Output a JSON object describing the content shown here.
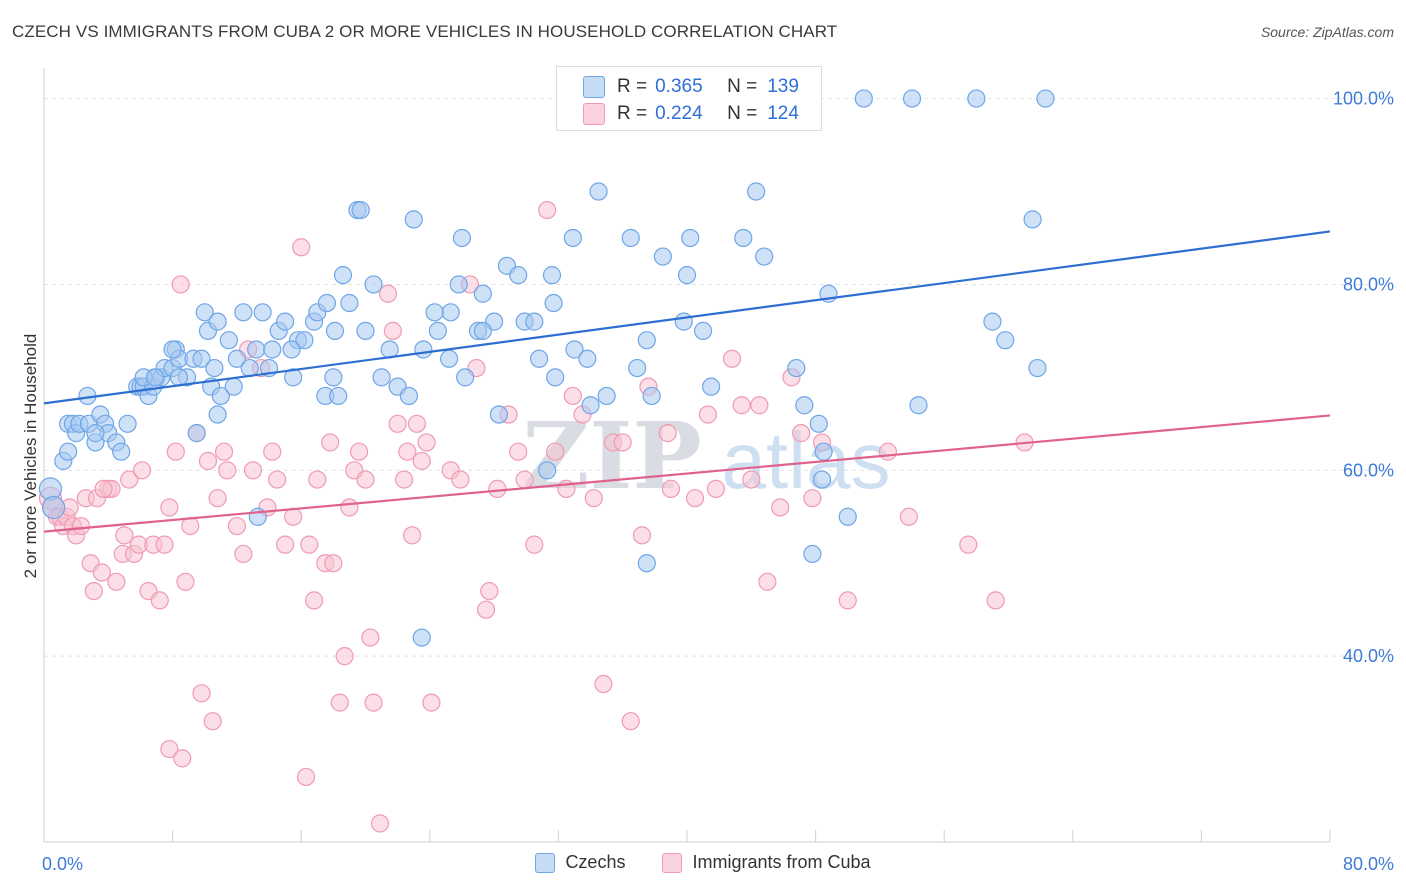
{
  "header": {
    "title": "CZECH VS IMMIGRANTS FROM CUBA 2 OR MORE VEHICLES IN HOUSEHOLD CORRELATION CHART",
    "source": "Source: ZipAtlas.com"
  },
  "stats": [
    {
      "r_label": "R =",
      "r_value": "0.365",
      "n_label": "N =",
      "n_value": "139",
      "color": "#a8c8f0"
    },
    {
      "r_label": "R =",
      "r_value": "0.224",
      "n_label": "N =",
      "n_value": "124",
      "color": "#f7b6c8"
    }
  ],
  "watermark": {
    "zip": "ZIP",
    "atlas": "atlas"
  },
  "chart_data": {
    "type": "scatter",
    "title": "CZECH VS IMMIGRANTS FROM CUBA 2 OR MORE VEHICLES IN HOUSEHOLD CORRELATION CHART",
    "xlabel": "",
    "ylabel": "2 or more Vehicles in Household",
    "xlim": [
      0,
      80
    ],
    "ylim": [
      20,
      103
    ],
    "x_tick_labels": [
      "0.0%",
      "80.0%"
    ],
    "y_ticks": [
      40,
      60,
      80,
      100
    ],
    "y_tick_labels": [
      "40.0%",
      "60.0%",
      "80.0%",
      "100.0%"
    ],
    "grid": true,
    "legend_position": "bottom",
    "series": [
      {
        "name": "Czechs",
        "color": "#6ea6e8",
        "fill": "#a8c8f0",
        "trend_color": "#2c6fd1",
        "trend": {
          "x": [
            0,
            80
          ],
          "y": [
            67.2,
            85.7
          ]
        },
        "points": [
          [
            0.4,
            58
          ],
          [
            0.6,
            56
          ],
          [
            1.2,
            61
          ],
          [
            1.5,
            62
          ],
          [
            1.5,
            65
          ],
          [
            1.8,
            65
          ],
          [
            2,
            64
          ],
          [
            2.2,
            65
          ],
          [
            2.7,
            68
          ],
          [
            2.8,
            65
          ],
          [
            3.2,
            63
          ],
          [
            3.5,
            66
          ],
          [
            3.8,
            65
          ],
          [
            4,
            64
          ],
          [
            4.5,
            63
          ],
          [
            4.8,
            62
          ],
          [
            5.2,
            65
          ],
          [
            5.8,
            69
          ],
          [
            6,
            69
          ],
          [
            6.2,
            69
          ],
          [
            6.5,
            68
          ],
          [
            6.8,
            69
          ],
          [
            7,
            70
          ],
          [
            7.3,
            70
          ],
          [
            7.5,
            71
          ],
          [
            8,
            71
          ],
          [
            8.2,
            73
          ],
          [
            8.4,
            72
          ],
          [
            8.9,
            70
          ],
          [
            9.3,
            72
          ],
          [
            9.8,
            72
          ],
          [
            9.5,
            64
          ],
          [
            10,
            77
          ],
          [
            10.2,
            75
          ],
          [
            10.4,
            69
          ],
          [
            10.6,
            71
          ],
          [
            10.8,
            66
          ],
          [
            11,
            68
          ],
          [
            11.5,
            74
          ],
          [
            11.8,
            69
          ],
          [
            12,
            72
          ],
          [
            12.4,
            77
          ],
          [
            12.8,
            71
          ],
          [
            13.2,
            73
          ],
          [
            13.6,
            77
          ],
          [
            14,
            71
          ],
          [
            14.2,
            73
          ],
          [
            14.6,
            75
          ],
          [
            15,
            76
          ],
          [
            15.5,
            70
          ],
          [
            15.8,
            74
          ],
          [
            16.2,
            74
          ],
          [
            16.8,
            76
          ],
          [
            17,
            77
          ],
          [
            17.6,
            78
          ],
          [
            17.5,
            68
          ],
          [
            18,
            70
          ],
          [
            18.3,
            68
          ],
          [
            18.6,
            81
          ],
          [
            19,
            78
          ],
          [
            19.5,
            88
          ],
          [
            19.7,
            88
          ],
          [
            20,
            75
          ],
          [
            20.5,
            80
          ],
          [
            21,
            70
          ],
          [
            21.5,
            73
          ],
          [
            22,
            69
          ],
          [
            22.7,
            68
          ],
          [
            23,
            87
          ],
          [
            23.6,
            73
          ],
          [
            24.5,
            75
          ],
          [
            25.3,
            77
          ],
          [
            25.8,
            80
          ],
          [
            26,
            85
          ],
          [
            26.2,
            70
          ],
          [
            27,
            75
          ],
          [
            27.3,
            79
          ],
          [
            28,
            76
          ],
          [
            28.3,
            66
          ],
          [
            28.8,
            82
          ],
          [
            29.5,
            81
          ],
          [
            29.9,
            76
          ],
          [
            30.5,
            76
          ],
          [
            30.8,
            72
          ],
          [
            31.6,
            81
          ],
          [
            31.7,
            78
          ],
          [
            33,
            73
          ],
          [
            33.8,
            72
          ],
          [
            32.9,
            85
          ],
          [
            34,
            67
          ],
          [
            34.5,
            90
          ],
          [
            35,
            68
          ],
          [
            36.5,
            85
          ],
          [
            37.5,
            74
          ],
          [
            37.8,
            68
          ],
          [
            38.5,
            83
          ],
          [
            40,
            81
          ],
          [
            40.2,
            85
          ],
          [
            39.8,
            76
          ],
          [
            41.5,
            69
          ],
          [
            43.5,
            85
          ],
          [
            44.3,
            90
          ],
          [
            44.8,
            83
          ],
          [
            46.8,
            71
          ],
          [
            47.3,
            67
          ],
          [
            48.2,
            65
          ],
          [
            48.5,
            62
          ],
          [
            48.4,
            59
          ],
          [
            47.8,
            51
          ],
          [
            48.8,
            79
          ],
          [
            50,
            55
          ],
          [
            51,
            100
          ],
          [
            54,
            100
          ],
          [
            58,
            100
          ],
          [
            62.3,
            100
          ],
          [
            54.4,
            67
          ],
          [
            59,
            76
          ],
          [
            59.8,
            74
          ],
          [
            61.5,
            87
          ],
          [
            61.8,
            71
          ],
          [
            13.3,
            55
          ],
          [
            37.5,
            50
          ],
          [
            23.5,
            42
          ],
          [
            31.3,
            60
          ],
          [
            25.2,
            72
          ],
          [
            31.8,
            70
          ],
          [
            8.4,
            70
          ],
          [
            8,
            73
          ],
          [
            6.2,
            70
          ],
          [
            36.9,
            71
          ],
          [
            41,
            75
          ],
          [
            10.8,
            76
          ],
          [
            24.3,
            77
          ],
          [
            18.1,
            75
          ],
          [
            15.4,
            73
          ],
          [
            6.9,
            70
          ],
          [
            27.3,
            75
          ],
          [
            3.2,
            64
          ]
        ]
      },
      {
        "name": "Immigrants from Cuba",
        "color": "#f09ab4",
        "fill": "#f7c3d2",
        "trend_color": "#e0628c",
        "trend": {
          "x": [
            0,
            80
          ],
          "y": [
            53.4,
            65.9
          ]
        },
        "points": [
          [
            0.4,
            57
          ],
          [
            0.6,
            56
          ],
          [
            0.8,
            55
          ],
          [
            1,
            55
          ],
          [
            1.2,
            54
          ],
          [
            1.4,
            55
          ],
          [
            1.6,
            56
          ],
          [
            1.8,
            54
          ],
          [
            2,
            53
          ],
          [
            2.3,
            54
          ],
          [
            2.6,
            57
          ],
          [
            2.9,
            50
          ],
          [
            3.1,
            47
          ],
          [
            3.3,
            57
          ],
          [
            3.6,
            49
          ],
          [
            4,
            58
          ],
          [
            4.2,
            58
          ],
          [
            4.5,
            48
          ],
          [
            4.9,
            51
          ],
          [
            5,
            53
          ],
          [
            5.3,
            59
          ],
          [
            5.6,
            51
          ],
          [
            5.9,
            52
          ],
          [
            6.1,
            60
          ],
          [
            6.5,
            47
          ],
          [
            6.8,
            52
          ],
          [
            7.2,
            46
          ],
          [
            7.5,
            52
          ],
          [
            7.8,
            56
          ],
          [
            8.2,
            62
          ],
          [
            8.5,
            80
          ],
          [
            8.8,
            48
          ],
          [
            9.1,
            54
          ],
          [
            9.5,
            64
          ],
          [
            9.8,
            36
          ],
          [
            10.2,
            61
          ],
          [
            10.5,
            33
          ],
          [
            10.8,
            57
          ],
          [
            11.2,
            62
          ],
          [
            11.4,
            60
          ],
          [
            12,
            54
          ],
          [
            12.4,
            51
          ],
          [
            12.7,
            73
          ],
          [
            13,
            60
          ],
          [
            13.5,
            71
          ],
          [
            13.9,
            56
          ],
          [
            14.2,
            62
          ],
          [
            14.5,
            59
          ],
          [
            15,
            52
          ],
          [
            15.5,
            55
          ],
          [
            16,
            84
          ],
          [
            16.3,
            27
          ],
          [
            16.5,
            52
          ],
          [
            16.8,
            46
          ],
          [
            17,
            59
          ],
          [
            17.5,
            50
          ],
          [
            17.8,
            63
          ],
          [
            18,
            50
          ],
          [
            18.4,
            35
          ],
          [
            18.7,
            40
          ],
          [
            19,
            56
          ],
          [
            19.3,
            60
          ],
          [
            19.6,
            62
          ],
          [
            20,
            59
          ],
          [
            20.3,
            42
          ],
          [
            20.5,
            35
          ],
          [
            20.9,
            22
          ],
          [
            21.4,
            79
          ],
          [
            21.7,
            75
          ],
          [
            22,
            65
          ],
          [
            22.4,
            59
          ],
          [
            22.6,
            62
          ],
          [
            22.9,
            53
          ],
          [
            23.2,
            65
          ],
          [
            23.5,
            61
          ],
          [
            23.8,
            63
          ],
          [
            24.1,
            35
          ],
          [
            25.3,
            60
          ],
          [
            25.9,
            59
          ],
          [
            26.5,
            80
          ],
          [
            26.9,
            71
          ],
          [
            27.5,
            45
          ],
          [
            27.7,
            47
          ],
          [
            28.2,
            58
          ],
          [
            28.9,
            66
          ],
          [
            29.5,
            62
          ],
          [
            29.9,
            59
          ],
          [
            30.5,
            52
          ],
          [
            31.3,
            88
          ],
          [
            31.8,
            62
          ],
          [
            32.5,
            58
          ],
          [
            32.9,
            68
          ],
          [
            33.5,
            66
          ],
          [
            34.2,
            57
          ],
          [
            34.8,
            37
          ],
          [
            35.4,
            63
          ],
          [
            36,
            63
          ],
          [
            36.5,
            33
          ],
          [
            37.2,
            53
          ],
          [
            37.6,
            69
          ],
          [
            38.8,
            64
          ],
          [
            39,
            58
          ],
          [
            40.5,
            57
          ],
          [
            41.3,
            66
          ],
          [
            41.8,
            58
          ],
          [
            42.8,
            72
          ],
          [
            43.4,
            67
          ],
          [
            44,
            59
          ],
          [
            44.5,
            67
          ],
          [
            45,
            48
          ],
          [
            45.8,
            56
          ],
          [
            46.5,
            70
          ],
          [
            47.1,
            64
          ],
          [
            47.8,
            57
          ],
          [
            48.4,
            63
          ],
          [
            50,
            46
          ],
          [
            52.5,
            62
          ],
          [
            53.8,
            55
          ],
          [
            57.5,
            52
          ],
          [
            59.2,
            46
          ],
          [
            61,
            63
          ],
          [
            7.8,
            30
          ],
          [
            8.6,
            29
          ],
          [
            3.7,
            58
          ]
        ]
      }
    ]
  }
}
